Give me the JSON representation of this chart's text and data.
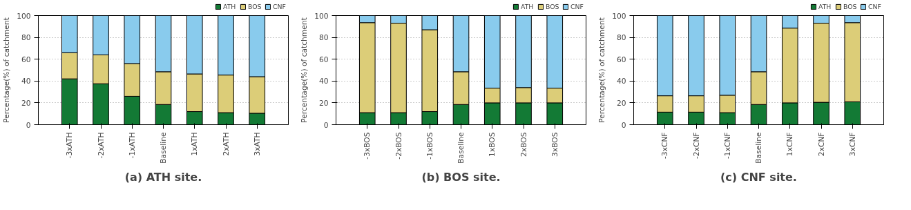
{
  "chart_data": [
    {
      "type": "bar",
      "stacked": true,
      "title": "(a) ATH site.",
      "ylabel": "Percentage(%) of catchment",
      "categories": [
        "-3xATH",
        "-2xATH",
        "-1xATH",
        "Baseline",
        "1xATH",
        "2xATH",
        "3xATH"
      ],
      "ylim": [
        0,
        100
      ],
      "yticks": [
        0,
        20,
        40,
        60,
        80,
        100
      ],
      "grid": "y",
      "legend": "top right",
      "series": [
        {
          "name": "ATH",
          "color": "#137a35",
          "values": [
            42,
            37.5,
            26,
            18.5,
            12,
            11,
            10.5
          ]
        },
        {
          "name": "BOS",
          "color": "#dccd78",
          "values": [
            24,
            26.5,
            30,
            30,
            34.5,
            34.5,
            33.5
          ]
        },
        {
          "name": "CNF",
          "color": "#89cbed",
          "values": [
            34,
            36,
            44,
            51.5,
            53.5,
            54.5,
            56
          ]
        }
      ]
    },
    {
      "type": "bar",
      "stacked": true,
      "title": "(b) BOS site.",
      "ylabel": "Percentage(%) of catchment",
      "categories": [
        "-3xBOS",
        "-2xBOS",
        "-1xBOS",
        "Baseline",
        "1xBOS",
        "2xBOS",
        "3xBOS"
      ],
      "ylim": [
        0,
        100
      ],
      "yticks": [
        0,
        20,
        40,
        60,
        80,
        100
      ],
      "grid": "y",
      "legend": "top right",
      "series": [
        {
          "name": "ATH",
          "color": "#137a35",
          "values": [
            11,
            11,
            12,
            18.5,
            20,
            20,
            20
          ]
        },
        {
          "name": "BOS",
          "color": "#dccd78",
          "values": [
            82.5,
            82,
            75,
            30,
            13.5,
            14,
            13.5
          ]
        },
        {
          "name": "CNF",
          "color": "#89cbed",
          "values": [
            6.5,
            7,
            13,
            51.5,
            66.5,
            66,
            66.5
          ]
        }
      ]
    },
    {
      "type": "bar",
      "stacked": true,
      "title": "(c) CNF site.",
      "ylabel": "Percentage(%) of catchment",
      "categories": [
        "-3xCNF",
        "-2xCNF",
        "-1xCNF",
        "Baseline",
        "1xCNF",
        "2xCNF",
        "3xCNF"
      ],
      "ylim": [
        0,
        100
      ],
      "yticks": [
        0,
        20,
        40,
        60,
        80,
        100
      ],
      "grid": "y",
      "legend": "top right",
      "series": [
        {
          "name": "ATH",
          "color": "#137a35",
          "values": [
            11.5,
            11.5,
            11,
            18.5,
            20,
            20.5,
            21
          ]
        },
        {
          "name": "BOS",
          "color": "#dccd78",
          "values": [
            15,
            15,
            16,
            30,
            68.5,
            72.5,
            72.5
          ]
        },
        {
          "name": "CNF",
          "color": "#89cbed",
          "values": [
            73.5,
            73.5,
            73,
            51.5,
            11.5,
            7,
            6.5
          ]
        }
      ]
    }
  ]
}
